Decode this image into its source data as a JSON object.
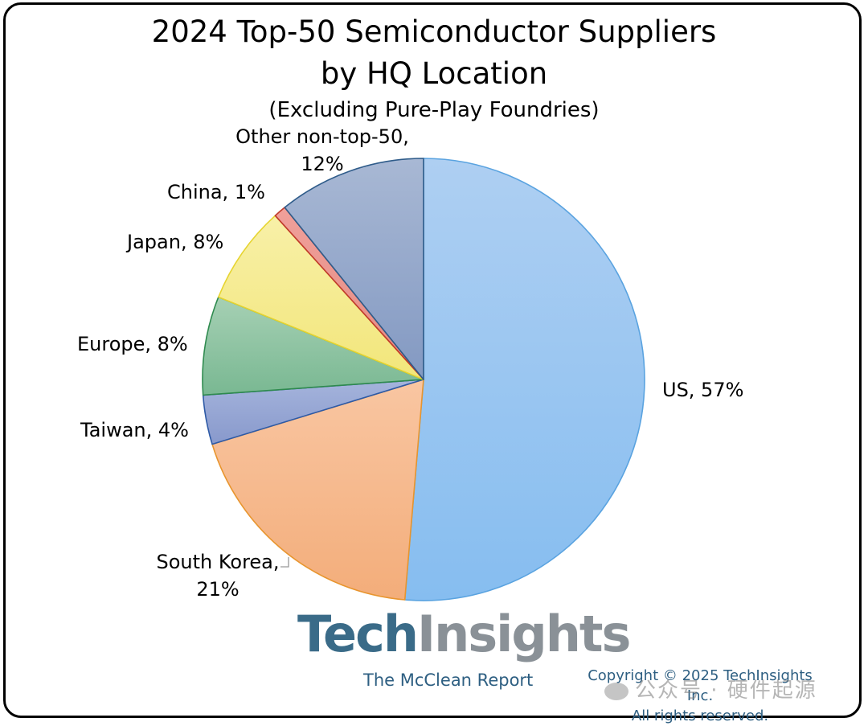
{
  "chart_data": {
    "type": "pie",
    "title_line1": "2024 Top-50 Semiconductor Suppliers",
    "title_line2": "by HQ Location",
    "subtitle": "(Excluding Pure-Play Foundries)",
    "slices": [
      {
        "label": "US, 57%",
        "category": "US",
        "value": 57,
        "color_top": "#aecff2",
        "color_bottom": "#86bdf0",
        "stroke": "#5aa3e0"
      },
      {
        "label_line1": "South Korea,",
        "label_line2": "21%",
        "category": "South Korea",
        "value": 21,
        "color_top": "#f9c6a2",
        "color_bottom": "#f3ad7a",
        "stroke": "#e8952e"
      },
      {
        "label": "Taiwan, 4%",
        "category": "Taiwan",
        "value": 4,
        "color_top": "#a5b4dc",
        "color_bottom": "#8899cc",
        "stroke": "#2e5aa6"
      },
      {
        "label": "Europe, 8%",
        "category": "Europe",
        "value": 8,
        "color_top": "#a6d0b4",
        "color_bottom": "#79b892",
        "stroke": "#2e8a4e"
      },
      {
        "label": "Japan, 8%",
        "category": "Japan",
        "value": 8,
        "color_top": "#f8f0a8",
        "color_bottom": "#f2e67a",
        "stroke": "#e6d430"
      },
      {
        "label": "China, 1%",
        "category": "China",
        "value": 1,
        "color_top": "#f0a09a",
        "color_bottom": "#e48a82",
        "stroke": "#c0392b"
      },
      {
        "label_line1": "Other non-top-50,",
        "label_line2": "12%",
        "category": "Other non-top-50",
        "value": 12,
        "color_top": "#a8b8d4",
        "color_bottom": "#8399c2",
        "stroke": "#2f5c8a"
      }
    ]
  },
  "logo": {
    "part1": "Tech",
    "part2": "Insights"
  },
  "report_name": "The McClean Report",
  "copyright_line1": "Copyright © 2025 TechInsights Inc.",
  "copyright_line2": "All rights reserved.",
  "watermark": "公众号 · 硬件起源"
}
